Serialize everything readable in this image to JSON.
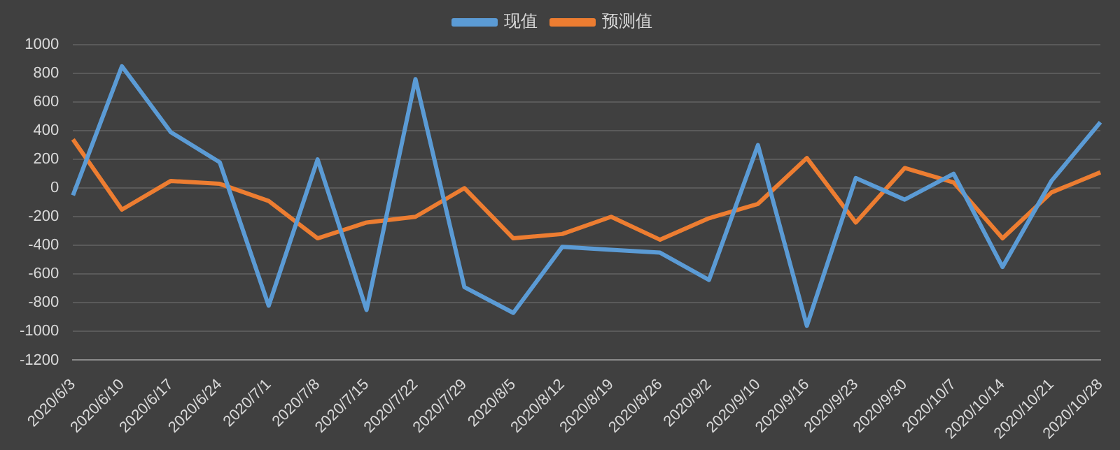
{
  "chart_data": {
    "type": "line",
    "categories": [
      "2020/6/3",
      "2020/6/10",
      "2020/6/17",
      "2020/6/24",
      "2020/7/1",
      "2020/7/8",
      "2020/7/15",
      "2020/7/22",
      "2020/7/29",
      "2020/8/5",
      "2020/8/12",
      "2020/8/19",
      "2020/8/26",
      "2020/9/2",
      "2020/9/10",
      "2020/9/16",
      "2020/9/23",
      "2020/9/30",
      "2020/10/7",
      "2020/10/14",
      "2020/10/21",
      "2020/10/28"
    ],
    "series": [
      {
        "name": "现值",
        "color": "#5b9bd5",
        "values": [
          -50,
          850,
          390,
          180,
          -820,
          200,
          -850,
          760,
          -690,
          -870,
          -410,
          -430,
          -450,
          -640,
          300,
          -960,
          70,
          -80,
          100,
          -550,
          50,
          460
        ]
      },
      {
        "name": "预测值",
        "color": "#ed7d31",
        "values": [
          340,
          -150,
          50,
          30,
          -90,
          -350,
          -240,
          -200,
          0,
          -350,
          -320,
          -200,
          -360,
          -210,
          -110,
          210,
          -240,
          140,
          40,
          -350,
          -30,
          110
        ]
      }
    ],
    "ylim": [
      -1200,
      1000
    ],
    "yticks": [
      -1200,
      -1000,
      -800,
      -600,
      -400,
      -200,
      0,
      200,
      400,
      600,
      800,
      1000
    ],
    "grid": "y",
    "legend": "top",
    "marker": "none",
    "line_style": "solid"
  }
}
